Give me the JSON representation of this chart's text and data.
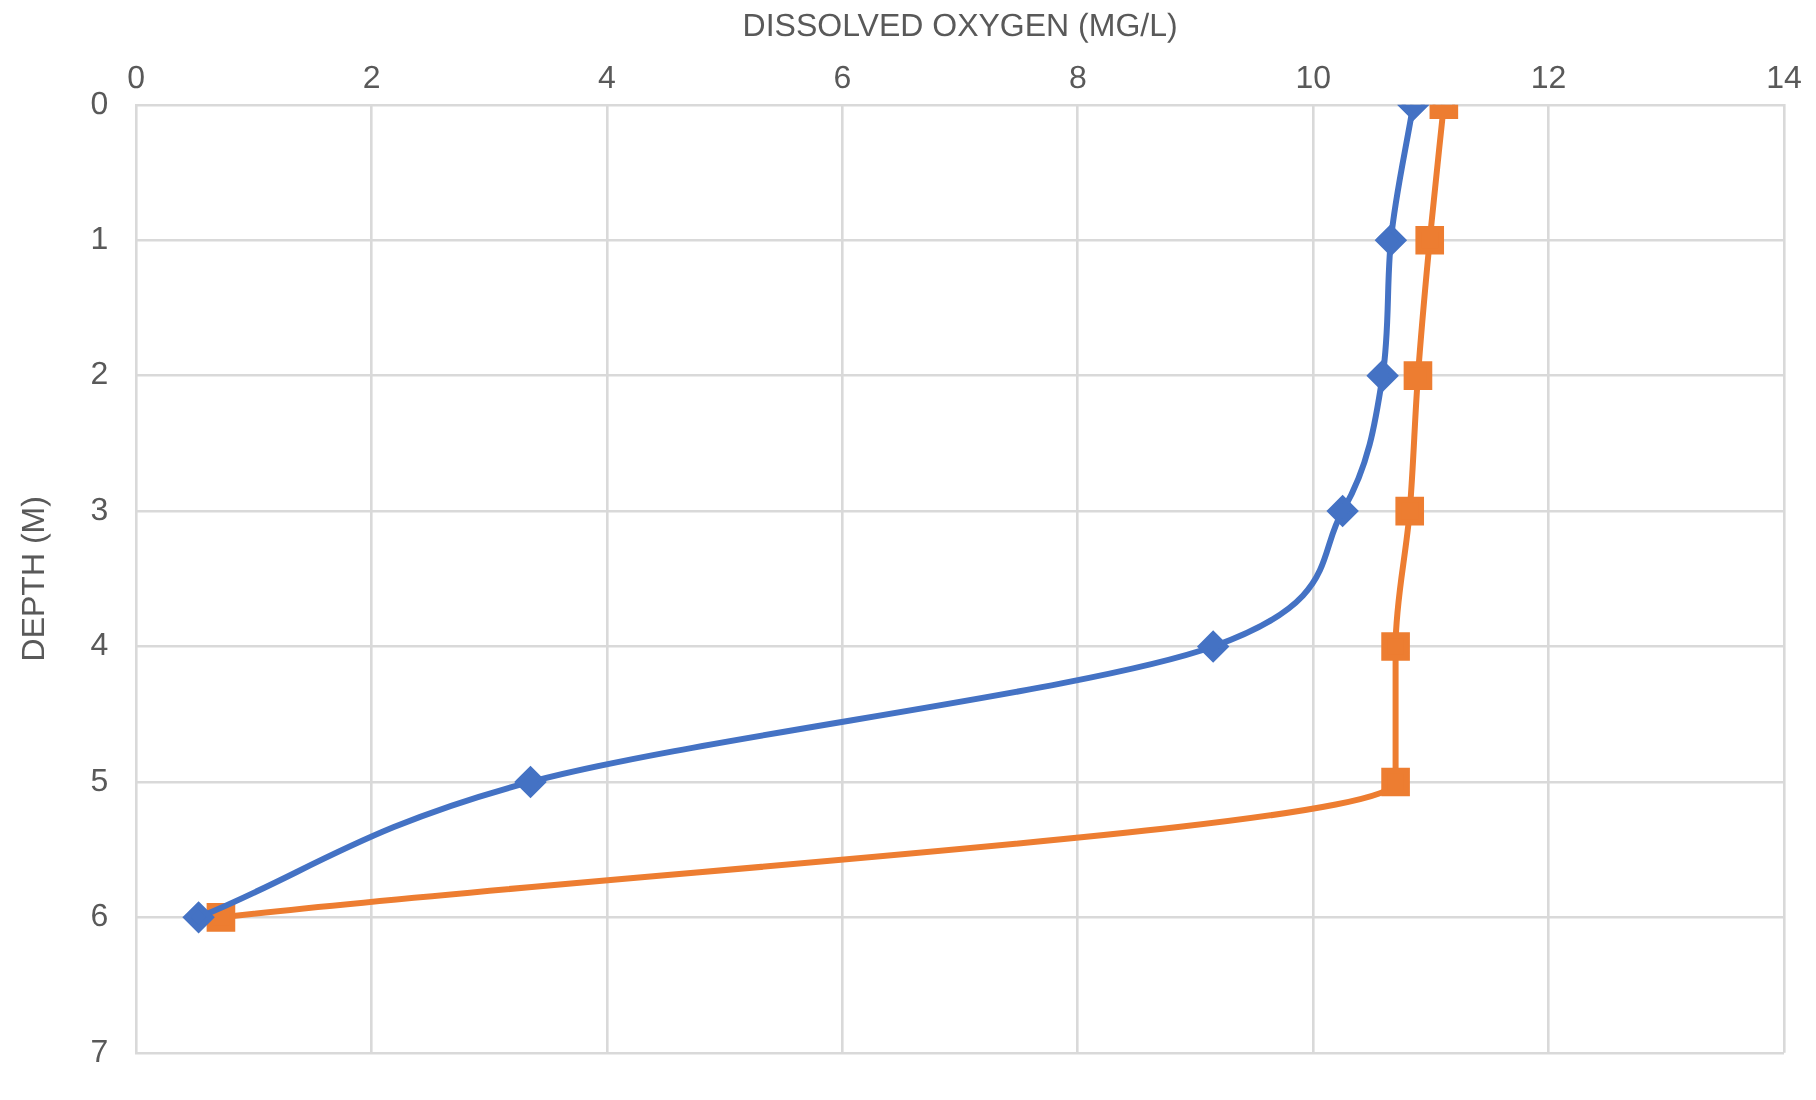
{
  "chart_data": {
    "type": "line",
    "xlabel": "DISSOLVED OXYGEN (MG/L)",
    "ylabel": "DEPTH (M)",
    "xlim": [
      0,
      14
    ],
    "xticks": [
      0,
      2,
      4,
      6,
      8,
      10,
      12,
      14
    ],
    "ylim": [
      7,
      0
    ],
    "yticks": [
      0,
      1,
      2,
      3,
      4,
      5,
      6,
      7
    ],
    "grid": true,
    "legend": false,
    "line_style": "solid",
    "series": [
      {
        "color": "#4472c4",
        "marker": "diamond",
        "x": [
          10.85,
          10.66,
          10.59,
          10.25,
          9.15,
          3.35,
          0.53
        ],
        "values": [
          0,
          1,
          2,
          3,
          4,
          5,
          6
        ]
      },
      {
        "color": "#ed7d31",
        "marker": "square",
        "x": [
          11.11,
          10.99,
          10.89,
          10.82,
          10.7,
          10.7,
          0.72
        ],
        "values": [
          0,
          1,
          2,
          3,
          4,
          5,
          6
        ]
      }
    ]
  }
}
